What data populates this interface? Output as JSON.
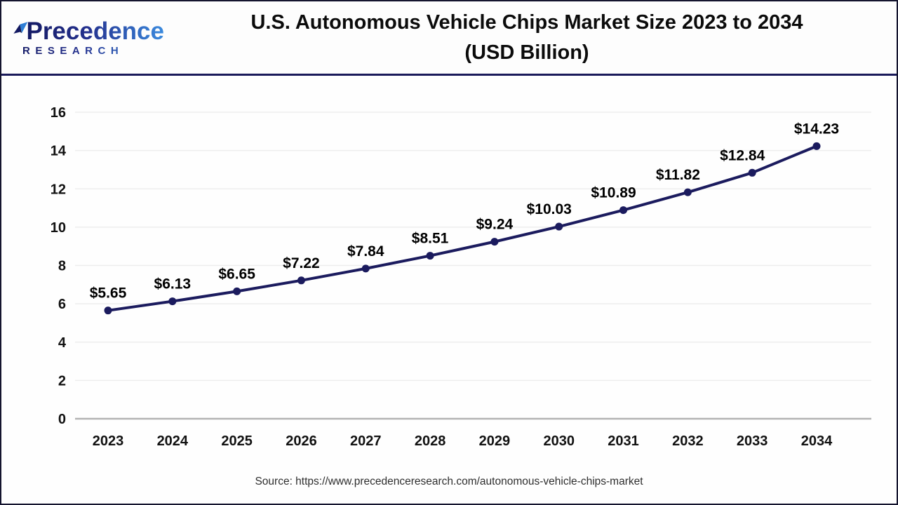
{
  "header": {
    "logo": {
      "line1": "Precedence",
      "line2": "RESEARCH"
    },
    "title_line1": "U.S. Autonomous Vehicle Chips Market Size 2023 to 2034",
    "title_line2": "(USD Billion)"
  },
  "chart_data": {
    "type": "line",
    "title": "U.S. Autonomous Vehicle Chips Market Size 2023 to 2034 (USD Billion)",
    "categories": [
      "2023",
      "2024",
      "2025",
      "2026",
      "2027",
      "2028",
      "2029",
      "2030",
      "2031",
      "2032",
      "2033",
      "2034"
    ],
    "series": [
      {
        "name": "U.S. Autonomous Vehicle Chips Market Size (USD Billion)",
        "values": [
          5.65,
          6.13,
          6.65,
          7.22,
          7.84,
          8.51,
          9.24,
          10.03,
          10.89,
          11.82,
          12.84,
          14.23
        ]
      }
    ],
    "data_labels": [
      "$5.65",
      "$6.13",
      "$6.65",
      "$7.22",
      "$7.84",
      "$8.51",
      "$9.24",
      "$10.03",
      "$10.89",
      "$11.82",
      "$12.84",
      "$14.23"
    ],
    "xlabel": "",
    "ylabel": "",
    "ylim": [
      0,
      16
    ],
    "ytick_step": 2,
    "grid": true,
    "legend": "none",
    "colors": {
      "line": "#1b1b5e",
      "marker": "#1b1b5e",
      "data_label": "#000000",
      "tick_label": "#111111",
      "gridline": "#ededed",
      "zero_axis": "#b3b3b3"
    }
  },
  "footer": {
    "source": "Source: https://www.precedenceresearch.com/autonomous-vehicle-chips-market"
  }
}
